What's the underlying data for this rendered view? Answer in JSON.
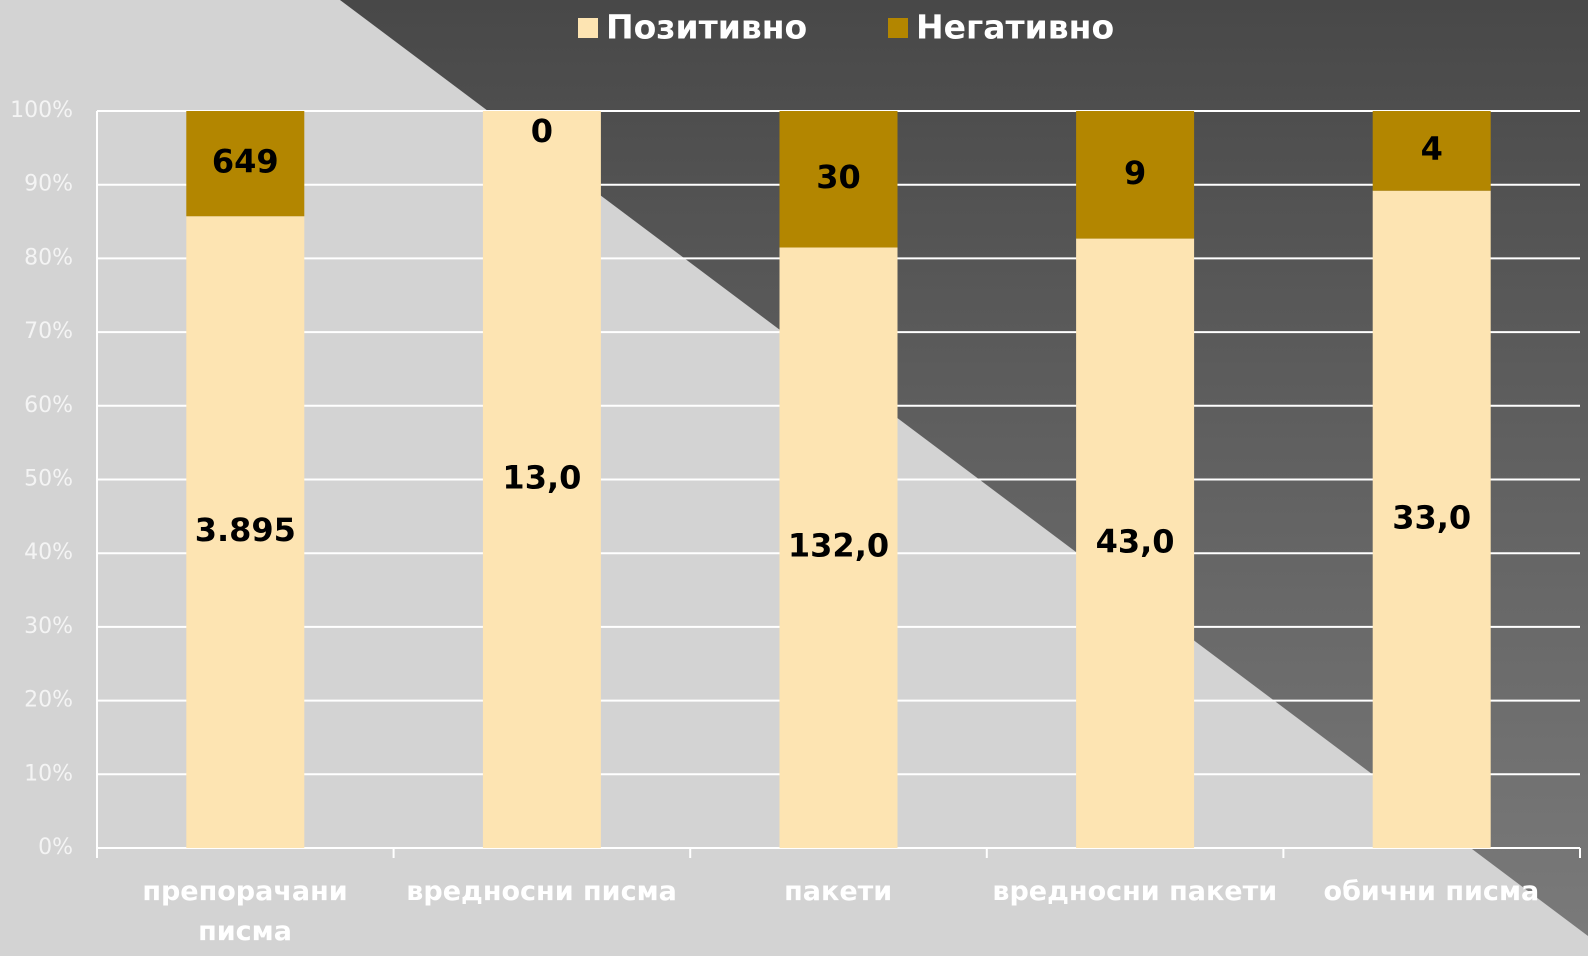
{
  "chart_data": {
    "type": "bar",
    "stack": "percent",
    "categories": [
      "препорачани писма",
      "вредносни писма",
      "пакети",
      "вредносни пакети",
      "обични писма"
    ],
    "series": [
      {
        "name": "Позитивно",
        "color": "#fde4b2",
        "values": [
          3895,
          13,
          132,
          43,
          33
        ],
        "value_labels": [
          "3.895",
          "13,0",
          "132,0",
          "43,0",
          "33,0"
        ]
      },
      {
        "name": "Негативно",
        "color": "#b38600",
        "values": [
          649,
          0,
          30,
          9,
          4
        ]
      }
    ],
    "ylim": [
      0,
      100
    ],
    "yticks": [
      {
        "value": 0,
        "label": "0%"
      },
      {
        "value": 10,
        "label": "10%"
      },
      {
        "value": 20,
        "label": "20%"
      },
      {
        "value": 30,
        "label": "30%"
      },
      {
        "value": 40,
        "label": "40%"
      },
      {
        "value": 50,
        "label": "50%"
      },
      {
        "value": 60,
        "label": "60%"
      },
      {
        "value": 70,
        "label": "70%"
      },
      {
        "value": 80,
        "label": "80%"
      },
      {
        "value": 90,
        "label": "90%"
      },
      {
        "value": 100,
        "label": "100%"
      }
    ],
    "grid": true,
    "legend": "top"
  }
}
